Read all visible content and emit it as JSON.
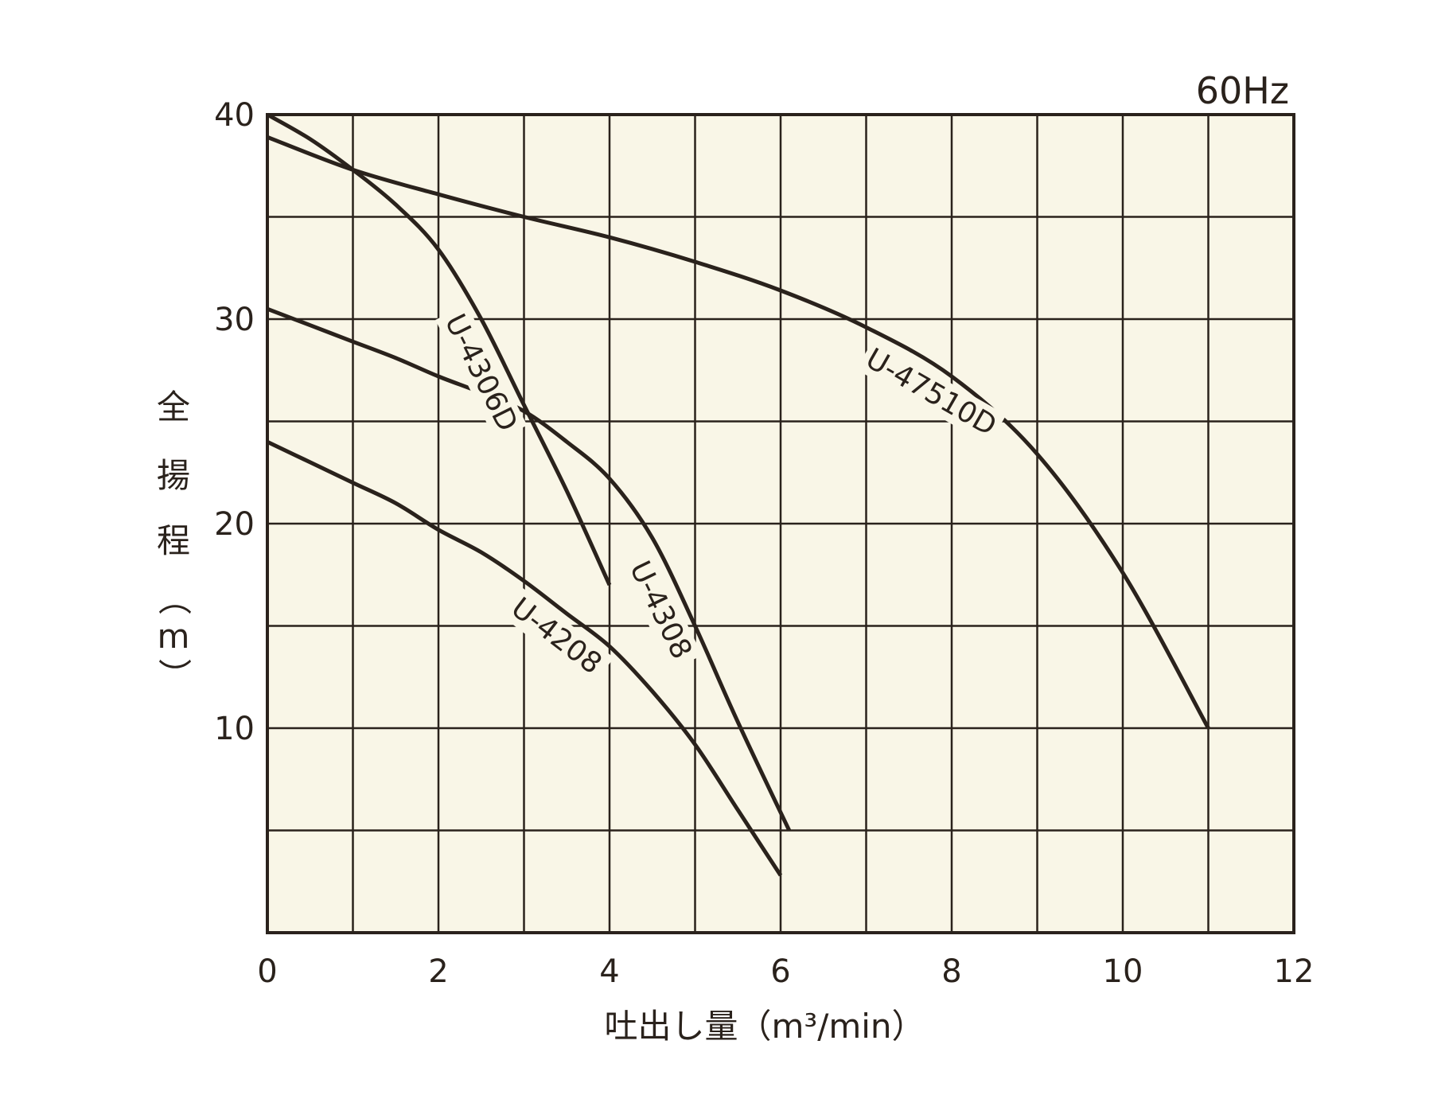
{
  "chart_data": {
    "type": "line",
    "title": "",
    "annotation": "60Hz",
    "xlabel": "吐出し量（m³/min）",
    "ylabel": [
      "全",
      "揚",
      "程",
      "（",
      "m",
      "）"
    ],
    "xlim": [
      0,
      12
    ],
    "ylim": [
      0,
      40
    ],
    "x_ticks": [
      0,
      2,
      4,
      6,
      8,
      10,
      12
    ],
    "y_ticks": [
      10,
      20,
      30,
      40
    ],
    "x_grid_step": 1,
    "y_grid_step": 5,
    "grid": true,
    "colors": {
      "background": "#f9f6e7",
      "line": "#2a221c",
      "grid": "#2a221c"
    },
    "series": [
      {
        "name": "U-47510D",
        "points": [
          [
            0,
            38.9
          ],
          [
            1,
            37.3
          ],
          [
            2,
            36.1
          ],
          [
            3,
            35.0
          ],
          [
            4,
            34.0
          ],
          [
            5,
            32.8
          ],
          [
            6,
            31.4
          ],
          [
            7,
            29.6
          ],
          [
            8,
            27.2
          ],
          [
            9,
            23.4
          ],
          [
            10,
            17.6
          ],
          [
            11,
            10.0
          ]
        ]
      },
      {
        "name": "U-4306D",
        "points": [
          [
            0,
            40.0
          ],
          [
            0.5,
            38.8
          ],
          [
            1,
            37.3
          ],
          [
            1.5,
            35.6
          ],
          [
            2,
            33.4
          ],
          [
            2.5,
            30.0
          ],
          [
            3,
            25.8
          ],
          [
            3.5,
            21.6
          ],
          [
            4,
            17.0
          ]
        ]
      },
      {
        "name": "U-4308",
        "points": [
          [
            0,
            30.5
          ],
          [
            0.5,
            29.7
          ],
          [
            1,
            28.9
          ],
          [
            1.5,
            28.1
          ],
          [
            2,
            27.2
          ],
          [
            2.5,
            26.4
          ],
          [
            3,
            25.5
          ],
          [
            3.5,
            24.0
          ],
          [
            4,
            22.2
          ],
          [
            4.5,
            19.3
          ],
          [
            5,
            15.0
          ],
          [
            5.5,
            10.3
          ],
          [
            6.1,
            5.0
          ]
        ]
      },
      {
        "name": "U-4208",
        "points": [
          [
            0,
            24.0
          ],
          [
            0.5,
            23.0
          ],
          [
            1,
            22.0
          ],
          [
            1.5,
            21.0
          ],
          [
            2,
            19.7
          ],
          [
            2.5,
            18.6
          ],
          [
            3,
            17.2
          ],
          [
            3.5,
            15.6
          ],
          [
            4,
            14.0
          ],
          [
            4.5,
            11.8
          ],
          [
            5,
            9.2
          ],
          [
            5.5,
            6.0
          ],
          [
            6,
            2.8
          ]
        ]
      }
    ]
  }
}
